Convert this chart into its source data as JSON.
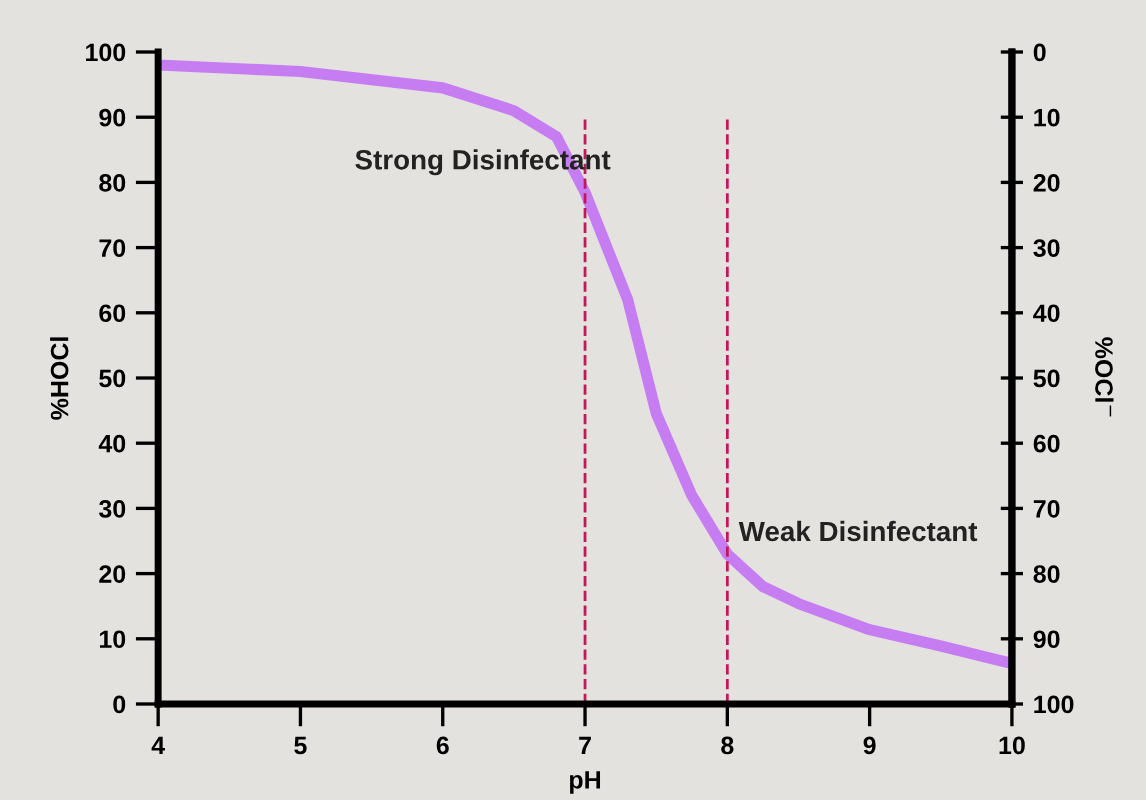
{
  "chart_data": {
    "type": "line",
    "xlabel": "pH",
    "ylabel": "%HOCl",
    "y2label": "%OCl$^{−}$",
    "x": [
      4,
      5,
      6,
      6.5,
      6.8,
      7,
      7.3,
      7.5,
      7.75,
      8,
      8.25,
      8.5,
      9,
      9.5,
      10
    ],
    "series": [
      {
        "color": "#c77df2",
        "values": [
          98,
          97,
          94.5,
          91,
          87,
          78.5,
          62,
          44.6,
          32,
          23,
          18,
          15.4,
          11.4,
          8.9,
          6.2
        ]
      }
    ],
    "xlim": [
      4,
      10
    ],
    "xticks": [
      4,
      5,
      6,
      7,
      8,
      9,
      10
    ],
    "ylim": [
      0,
      100
    ],
    "yticks": [
      0,
      10,
      20,
      30,
      40,
      50,
      60,
      70,
      80,
      90,
      100
    ],
    "y2lim": [
      100,
      0
    ],
    "y2ticks": [
      0,
      10,
      20,
      30,
      40,
      50,
      60,
      70,
      80,
      90,
      100
    ],
    "ref_lines": [
      {
        "axis": "x",
        "value": 7,
        "color": "#c2185b",
        "line_style": "dashed"
      },
      {
        "axis": "x",
        "value": 8,
        "color": "#c2185b",
        "line_style": "dashed"
      }
    ],
    "annotations": [
      "Strong Disinfectant",
      "Weak Disinfectant"
    ],
    "grid": false,
    "marker": "none",
    "line_style": "solid"
  }
}
